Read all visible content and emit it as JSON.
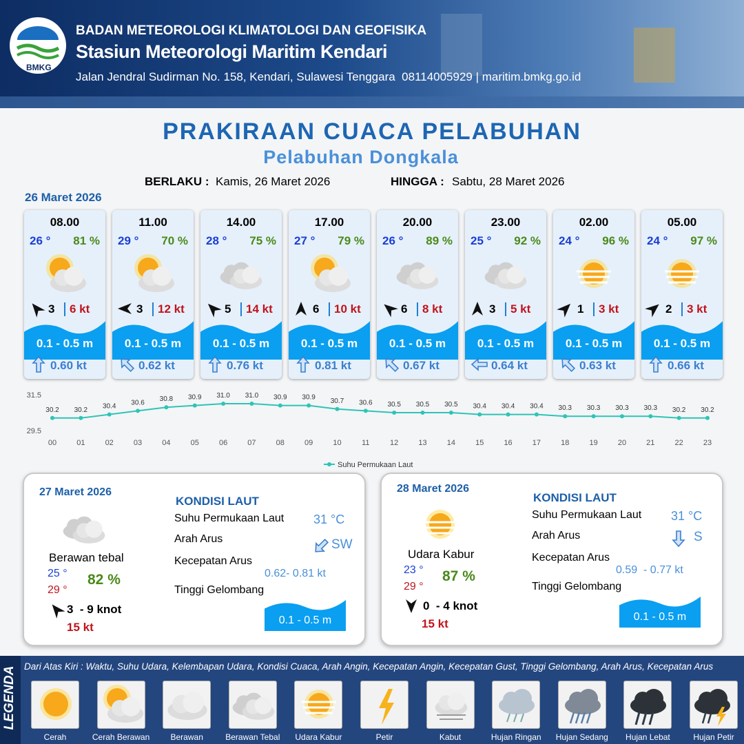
{
  "header": {
    "logo": "BMKG",
    "org": "BADAN METEOROLOGI KLIMATOLOGI DAN GEOFISIKA",
    "station": "Stasiun Meteorologi Maritim Kendari",
    "address": "Jalan Jendral Sudirman No. 158, Kendari, Sulawesi Tenggara  08114005929 | maritim.bmkg.go.id"
  },
  "title": "PRAKIRAAN CUACA PELABUHAN",
  "subtitle": "Pelabuhan Dongkala",
  "validity": {
    "from_label": "BERLAKU :",
    "from": "Kamis, 26 Maret 2026",
    "to_label": "HINGGA :",
    "to": "Sabtu, 28 Maret 2026"
  },
  "day1": {
    "date": "26 Maret 2026",
    "cards": [
      {
        "time": "08.00",
        "temp": "26 °",
        "humidity": "81 %",
        "wind": "3",
        "gust": "6 kt",
        "wave": "0.1 - 0.5 m",
        "current": "0.60 kt"
      },
      {
        "time": "11.00",
        "temp": "29 °",
        "humidity": "70 %",
        "wind": "3",
        "gust": "12 kt",
        "wave": "0.1 - 0.5 m",
        "current": "0.62 kt"
      },
      {
        "time": "14.00",
        "temp": "28 °",
        "humidity": "75 %",
        "wind": "5",
        "gust": "14 kt",
        "wave": "0.1 - 0.5 m",
        "current": "0.76 kt"
      },
      {
        "time": "17.00",
        "temp": "27 °",
        "humidity": "79 %",
        "wind": "6",
        "gust": "10 kt",
        "wave": "0.1 - 0.5 m",
        "current": "0.81 kt"
      },
      {
        "time": "20.00",
        "temp": "26 °",
        "humidity": "89 %",
        "wind": "6",
        "gust": "8 kt",
        "wave": "0.1 - 0.5 m",
        "current": "0.67 kt"
      },
      {
        "time": "23.00",
        "temp": "25 °",
        "humidity": "92 %",
        "wind": "3",
        "gust": "5 kt",
        "wave": "0.1 - 0.5 m",
        "current": "0.64 kt"
      },
      {
        "time": "02.00",
        "temp": "24 °",
        "humidity": "96 %",
        "wind": "1",
        "gust": "3 kt",
        "wave": "0.1 - 0.5 m",
        "current": "0.63 kt"
      },
      {
        "time": "05.00",
        "temp": "24 °",
        "humidity": "97 %",
        "wind": "2",
        "gust": "3 kt",
        "wave": "0.1 - 0.5 m",
        "current": "0.66 kt"
      }
    ]
  },
  "chart_data": {
    "type": "line",
    "categories": [
      "00",
      "01",
      "02",
      "03",
      "04",
      "05",
      "06",
      "07",
      "08",
      "09",
      "10",
      "11",
      "12",
      "13",
      "14",
      "15",
      "16",
      "17",
      "18",
      "19",
      "20",
      "21",
      "22",
      "23"
    ],
    "series": [
      {
        "name": "Suhu Permukaan Laut",
        "color": "#2ec4b6",
        "values": [
          30.2,
          30.2,
          30.4,
          30.6,
          30.8,
          30.9,
          31.0,
          31.0,
          30.9,
          30.9,
          30.7,
          30.6,
          30.5,
          30.5,
          30.5,
          30.4,
          30.4,
          30.4,
          30.3,
          30.3,
          30.3,
          30.3,
          30.2,
          30.2
        ],
        "value_labels": [
          "30.2",
          "30.2",
          "30.4",
          "30.6",
          "30.8",
          "30.9",
          "31.0",
          "31.0",
          "30.9",
          "30.9",
          "30.7",
          "30.6",
          "30.5",
          "30.5",
          "30.5",
          "30.4",
          "30.4",
          "30.4",
          "30.3",
          "30.3",
          "30.3",
          "30.3",
          "30.2",
          "30.2"
        ]
      }
    ],
    "ylim": [
      29.5,
      31.5
    ],
    "yticks": [
      29.5,
      31.5
    ]
  },
  "days": [
    {
      "date": "27 Maret 2026",
      "condition": "Berawan tebal",
      "temp_min": "25 °",
      "temp_max": "29 °",
      "humidity": "82 %",
      "wind": "3  - 9 knot",
      "gust": "15 kt",
      "sea": {
        "heading": "KONDISI LAUT",
        "sst_label": "Suhu Permukaan Laut",
        "sst": "31 °C",
        "dir_label": "Arah Arus",
        "dir": "SW",
        "speed_label": "Kecepatan Arus",
        "speed": "0.62- 0.81 kt",
        "wave_label": "Tinggi Gelombang",
        "wave": "0.1 - 0.5 m"
      }
    },
    {
      "date": "28 Maret 2026",
      "condition": "Udara Kabur",
      "temp_min": "23 °",
      "temp_max": "29 °",
      "humidity": "87 %",
      "wind": "0  - 4 knot",
      "gust": "15 kt",
      "sea": {
        "heading": "KONDISI LAUT",
        "sst_label": "Suhu Permukaan Laut",
        "sst": "31 °C",
        "dir_label": "Arah Arus",
        "dir": "S",
        "speed_label": "Kecepatan Arus",
        "speed": "0.59  - 0.77 kt",
        "wave_label": "Tinggi Gelombang",
        "wave": "0.1 - 0.5 m"
      }
    }
  ],
  "legend": {
    "title": "LEGENDA",
    "description": "Dari Atas Kiri : Waktu, Suhu Udara, Kelembapan Udara, Kondisi Cuaca, Arah Angin, Kecepatan Angin, Kecepatan Gust, Tinggi Gelombang, Arah Arus, Kecepatan Arus",
    "items": [
      "Cerah",
      "Cerah Berawan",
      "Berawan",
      "Berawan Tebal",
      "Udara Kabur",
      "Petir",
      "Kabut",
      "Hujan Ringan",
      "Hujan Sedang",
      "Hujan Lebat",
      "Hujan Petir"
    ]
  }
}
